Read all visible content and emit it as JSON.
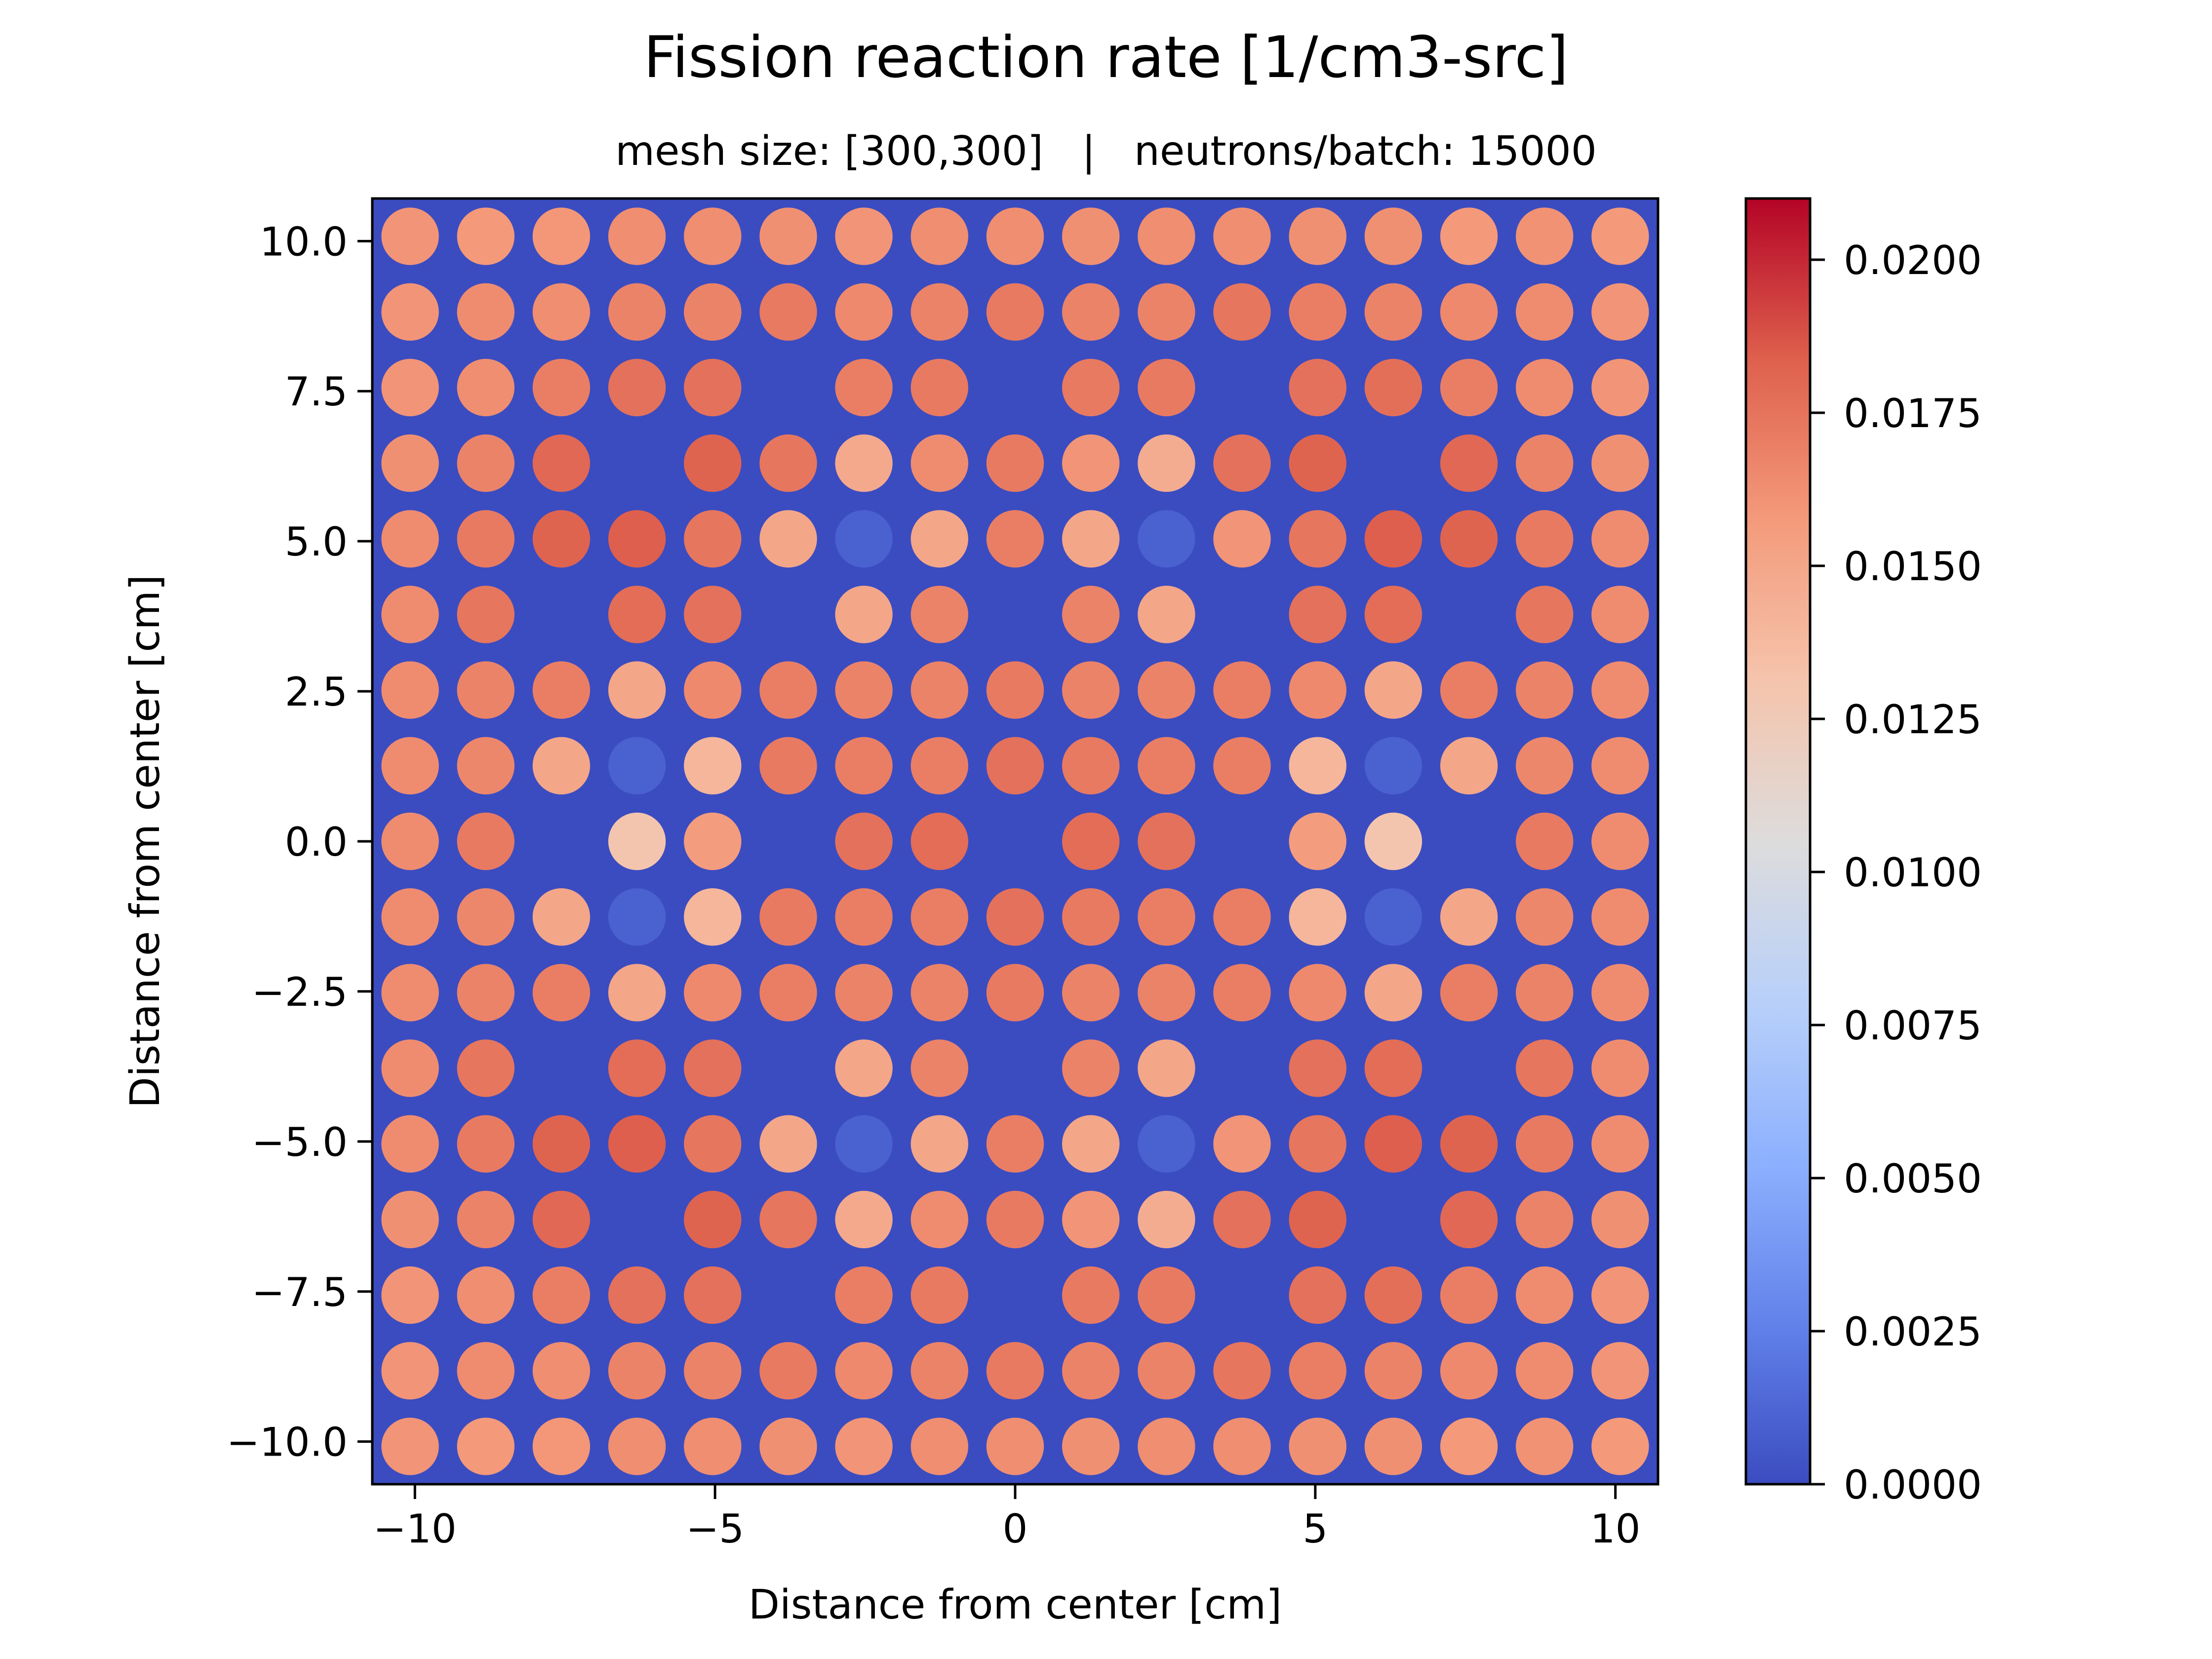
{
  "chart_data": {
    "type": "heatmap",
    "title": "Fission reaction rate [1/cm3-src]",
    "subtitle": "mesh size: [300,300]   |   neutrons/batch: 15000",
    "xlabel": "Distance from center [cm]",
    "ylabel": "Distance from center [cm]",
    "xlim": [
      -10.71,
      10.71
    ],
    "ylim": [
      -10.71,
      10.71
    ],
    "xticks": [
      -10,
      -5,
      0,
      5,
      10
    ],
    "xtick_labels": [
      "−10",
      "−5",
      "0",
      "5",
      "10"
    ],
    "yticks": [
      10.0,
      7.5,
      5.0,
      2.5,
      0.0,
      -2.5,
      -5.0,
      -7.5,
      -10.0
    ],
    "ytick_labels": [
      "10.0",
      "7.5",
      "5.0",
      "2.5",
      "0.0",
      "−2.5",
      "−5.0",
      "−7.5",
      "−10.0"
    ],
    "grid": false,
    "colormap": "coolwarm",
    "colorbar": {
      "min": 0.0,
      "max": 0.021,
      "ticks": [
        0.0,
        0.0025,
        0.005,
        0.0075,
        0.01,
        0.0125,
        0.015,
        0.0175,
        0.02
      ],
      "tick_labels": [
        "0.0000",
        "0.0025",
        "0.0050",
        "0.0075",
        "0.0100",
        "0.0125",
        "0.0150",
        "0.0175",
        "0.0200"
      ],
      "stops": [
        "#3b4cc0",
        "#6282ea",
        "#8db0fe",
        "#b8d0f9",
        "#dddcdc",
        "#f5c4ac",
        "#f49a7b",
        "#de604d",
        "#b40426"
      ]
    },
    "background_value": 0.0,
    "pin_pitch_cm": 1.26,
    "pin_positions_cm": [
      -10.08,
      -8.82,
      -7.56,
      -6.3,
      -5.04,
      -3.78,
      -2.52,
      -1.26,
      0.0,
      1.26,
      2.52,
      3.78,
      5.04,
      6.3,
      7.56,
      8.82,
      10.08
    ],
    "values_note": "rows listed top (y = +10.08) to bottom (y = -10.08); null = no fuel pin",
    "values": [
      [
        0.016,
        0.0158,
        0.0159,
        0.0163,
        0.0163,
        0.0162,
        0.016,
        0.0163,
        0.0163,
        0.0162,
        0.0163,
        0.0163,
        0.0162,
        0.0162,
        0.0158,
        0.0161,
        0.0158
      ],
      [
        0.016,
        0.0164,
        0.0163,
        0.0168,
        0.0168,
        0.0172,
        0.0165,
        0.0168,
        0.0172,
        0.0168,
        0.0168,
        0.0174,
        0.017,
        0.0168,
        0.0165,
        0.0164,
        0.016
      ],
      [
        0.016,
        0.0163,
        0.017,
        0.0176,
        0.0176,
        null,
        0.017,
        0.0172,
        null,
        0.0172,
        0.0172,
        null,
        0.0176,
        0.0177,
        0.017,
        0.0164,
        0.016
      ],
      [
        0.0162,
        0.0168,
        0.018,
        null,
        0.0182,
        0.0174,
        0.0148,
        0.0164,
        0.0172,
        0.016,
        0.0146,
        0.0176,
        0.0182,
        null,
        0.018,
        0.0168,
        0.0162
      ],
      [
        0.0164,
        0.0172,
        0.0182,
        0.0184,
        0.0174,
        0.015,
        0.001,
        0.015,
        0.017,
        0.015,
        0.001,
        0.016,
        0.0174,
        0.0184,
        0.0182,
        0.0172,
        0.0164
      ],
      [
        0.0164,
        0.0174,
        null,
        0.0178,
        0.0176,
        null,
        0.015,
        0.0168,
        null,
        0.0168,
        0.015,
        null,
        0.0176,
        0.0178,
        null,
        0.0174,
        0.0164
      ],
      [
        0.0164,
        0.0168,
        0.017,
        0.015,
        0.0165,
        0.017,
        0.0168,
        0.0168,
        0.0172,
        0.0168,
        0.0168,
        0.017,
        0.0165,
        0.015,
        0.017,
        0.0168,
        0.0164
      ],
      [
        0.0164,
        0.0166,
        0.015,
        0.001,
        0.014,
        0.0172,
        0.017,
        0.017,
        0.0176,
        0.0172,
        0.017,
        0.017,
        0.014,
        0.001,
        0.015,
        0.0166,
        0.0164
      ],
      [
        0.0164,
        0.0172,
        null,
        0.013,
        0.0156,
        null,
        0.0176,
        0.0178,
        null,
        0.0178,
        0.0176,
        null,
        0.0156,
        0.013,
        null,
        0.0172,
        0.0164
      ],
      [
        0.0164,
        0.0166,
        0.015,
        0.001,
        0.014,
        0.0172,
        0.017,
        0.017,
        0.0176,
        0.0172,
        0.017,
        0.017,
        0.014,
        0.001,
        0.015,
        0.0166,
        0.0164
      ],
      [
        0.0164,
        0.0168,
        0.017,
        0.015,
        0.0165,
        0.017,
        0.0168,
        0.0168,
        0.0172,
        0.0168,
        0.0168,
        0.017,
        0.0165,
        0.015,
        0.017,
        0.0168,
        0.0164
      ],
      [
        0.0164,
        0.0174,
        null,
        0.0178,
        0.0176,
        null,
        0.015,
        0.0168,
        null,
        0.0168,
        0.015,
        null,
        0.0176,
        0.0178,
        null,
        0.0174,
        0.0164
      ],
      [
        0.0164,
        0.0172,
        0.0182,
        0.0184,
        0.0174,
        0.015,
        0.001,
        0.015,
        0.017,
        0.015,
        0.001,
        0.016,
        0.0174,
        0.0184,
        0.0182,
        0.0172,
        0.0164
      ],
      [
        0.0162,
        0.0168,
        0.018,
        null,
        0.0182,
        0.0174,
        0.0148,
        0.0164,
        0.0172,
        0.016,
        0.0146,
        0.0176,
        0.0182,
        null,
        0.018,
        0.0168,
        0.0162
      ],
      [
        0.016,
        0.0163,
        0.017,
        0.0176,
        0.0176,
        null,
        0.017,
        0.0172,
        null,
        0.0172,
        0.0172,
        null,
        0.0176,
        0.0177,
        0.017,
        0.0164,
        0.016
      ],
      [
        0.016,
        0.0164,
        0.0163,
        0.0168,
        0.0168,
        0.0172,
        0.0165,
        0.0168,
        0.0172,
        0.0168,
        0.0168,
        0.0174,
        0.017,
        0.0168,
        0.0165,
        0.0164,
        0.016
      ],
      [
        0.016,
        0.0158,
        0.0159,
        0.0163,
        0.0163,
        0.0162,
        0.016,
        0.0163,
        0.0163,
        0.0162,
        0.0163,
        0.0163,
        0.0162,
        0.0162,
        0.0158,
        0.0161,
        0.0158
      ]
    ]
  }
}
